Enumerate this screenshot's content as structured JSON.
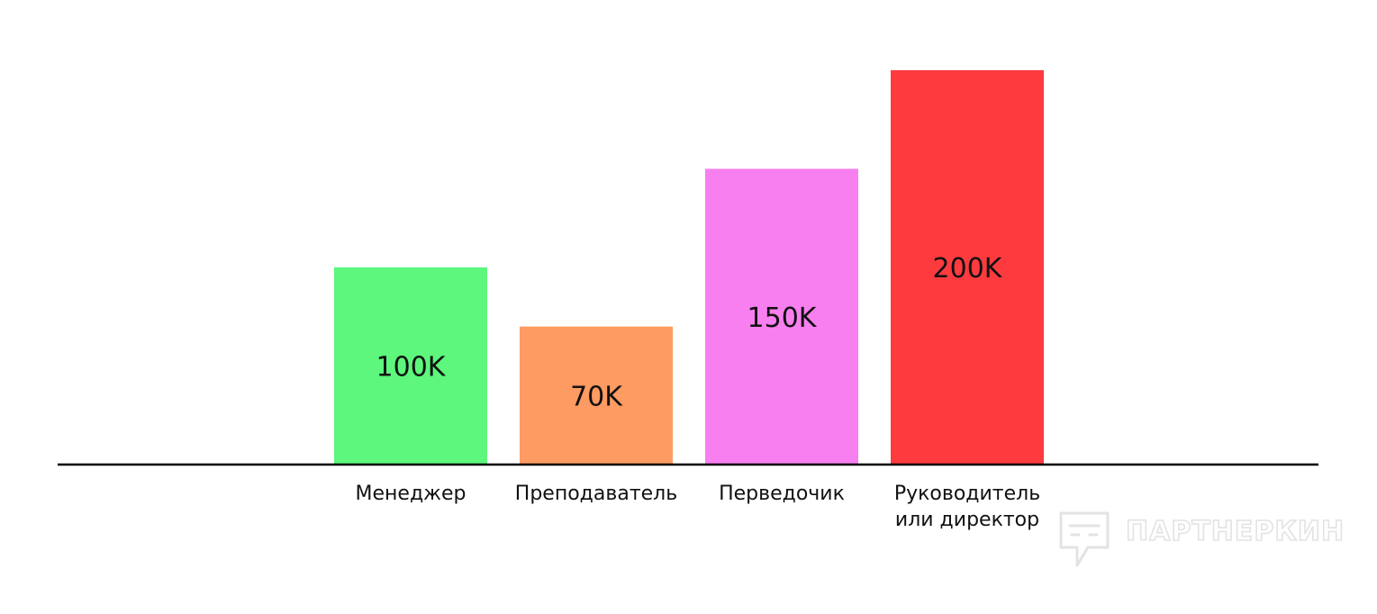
{
  "chart_data": {
    "type": "bar",
    "title": "",
    "xlabel": "",
    "ylabel": "",
    "ylim": [
      0,
      200000
    ],
    "grid": false,
    "legend": "none",
    "categories": [
      "Менеджер",
      "Преподаватель",
      "Перведочик",
      "Руководитель\nили директор"
    ],
    "values": [
      100000,
      70000,
      150000,
      200000
    ],
    "data_labels": [
      "100K",
      "70K",
      "150K",
      "200K"
    ],
    "colors": [
      "#5cf77c",
      "#fe9b62",
      "#f87fef",
      "#fd3b3f"
    ]
  },
  "watermark": {
    "text": "ПАРТНЕРКИН",
    "icon": "partnerkin-logo-icon",
    "color": "#e3e3e3"
  },
  "axis": {
    "color": "#000000"
  }
}
